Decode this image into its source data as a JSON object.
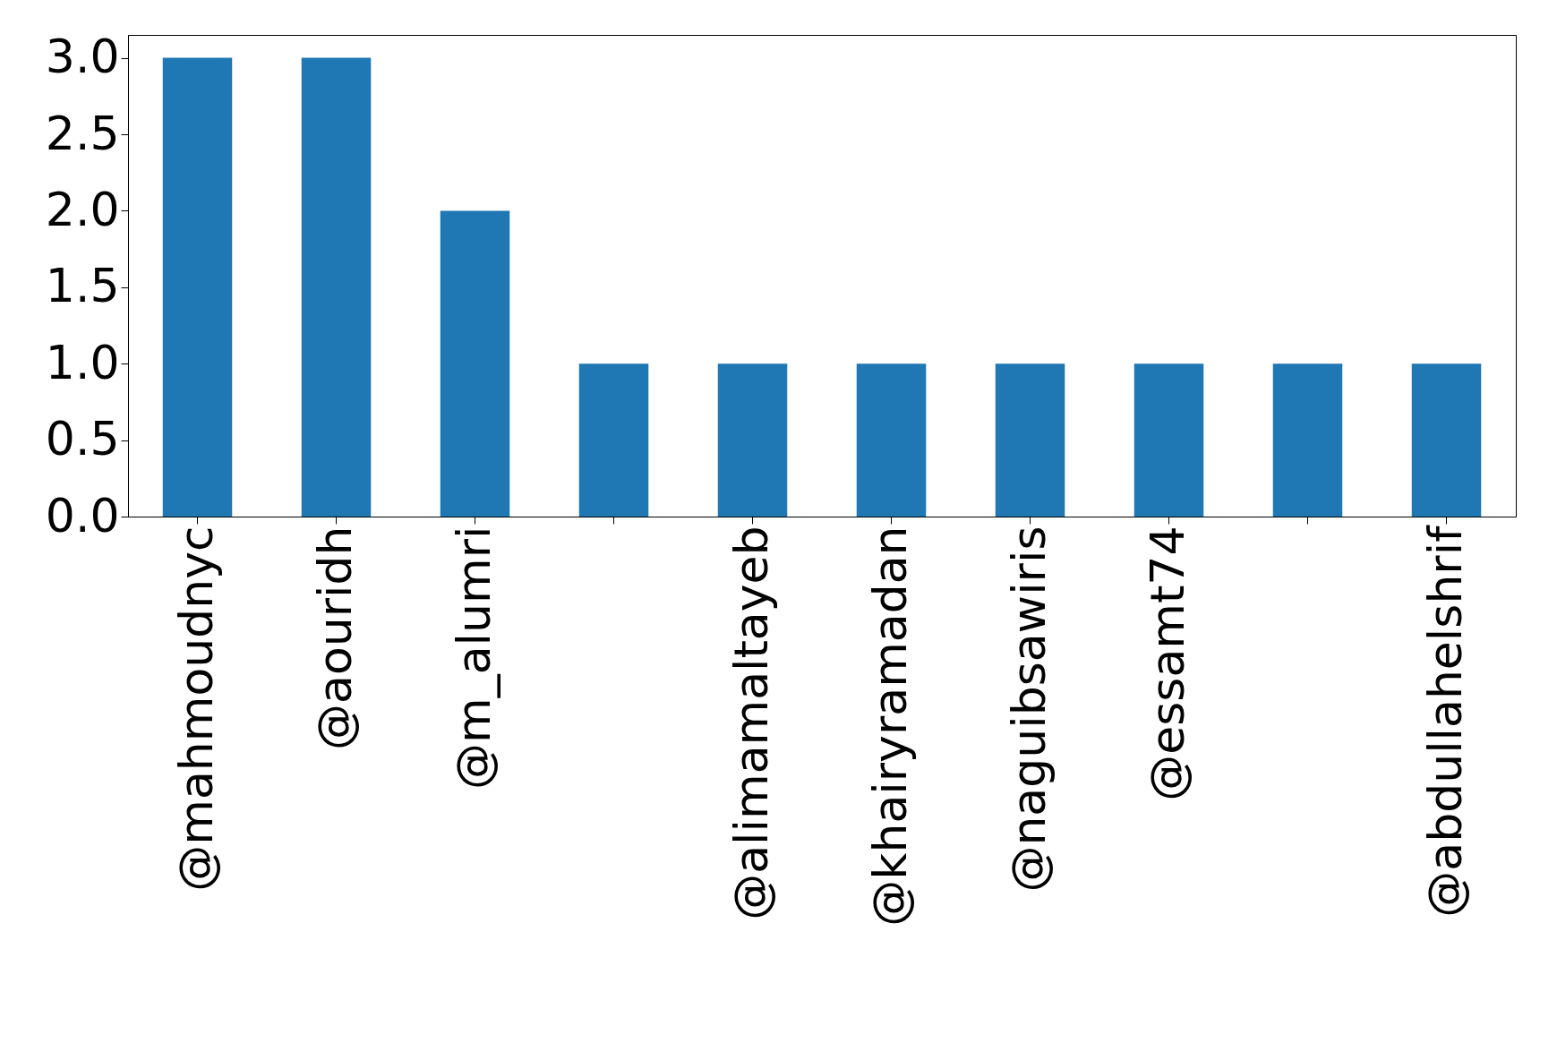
{
  "chart_data": {
    "type": "bar",
    "categories": [
      "@mahmoudnyc",
      "@aouridh",
      "@m_alumri",
      null,
      "@alimamaltayeb",
      "@khairyramadan",
      "@naguibsawiris",
      "@essamt74",
      null,
      "@abdullahelshrif"
    ],
    "values": [
      3,
      3,
      2,
      1,
      1,
      1,
      1,
      1,
      1,
      1
    ],
    "color": "#1f77b4",
    "ylim": [
      0,
      3.15
    ],
    "yticks": [
      {
        "value": 0,
        "label": "0.0"
      },
      {
        "value": 0.5,
        "label": "0.5"
      },
      {
        "value": 1,
        "label": "1.0"
      },
      {
        "value": 1.5,
        "label": "1.5"
      },
      {
        "value": 2,
        "label": "2.0"
      },
      {
        "value": 2.5,
        "label": "2.5"
      },
      {
        "value": 3,
        "label": "3.0"
      }
    ],
    "grid": false
  }
}
